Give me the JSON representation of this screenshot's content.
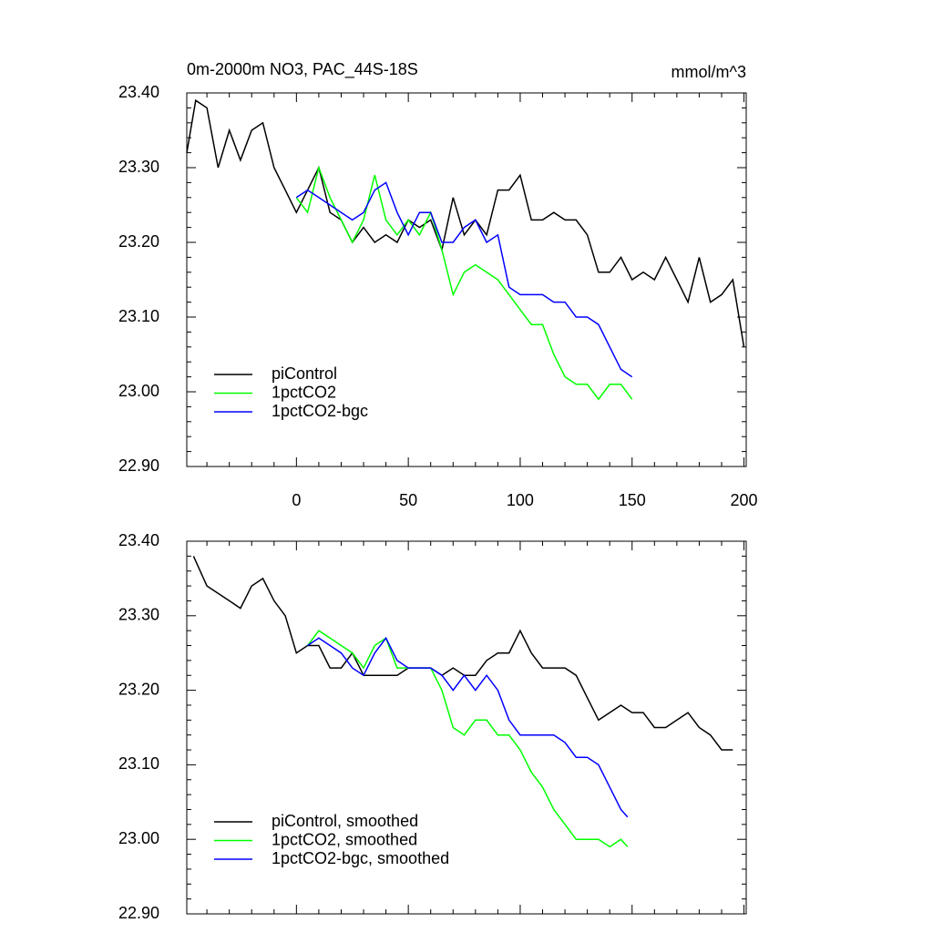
{
  "chart_data": [
    {
      "type": "line",
      "title": "0m-2000m NO3, PAC_44S-18S",
      "units": "mmol/m^3",
      "xlim": [
        -49,
        201
      ],
      "xticks": [
        0,
        50,
        100,
        150,
        200
      ],
      "x_tick_labels": true,
      "ylim": [
        22.9,
        23.4
      ],
      "yticks": [
        {
          "value": 22.9,
          "label": "22.90"
        },
        {
          "value": 23.0,
          "label": "23.00"
        },
        {
          "value": 23.1,
          "label": "23.10"
        },
        {
          "value": 23.2,
          "label": "23.20"
        },
        {
          "value": 23.3,
          "label": "23.30"
        },
        {
          "value": 23.4,
          "label": "23.40"
        }
      ],
      "legend": "lower left",
      "series": [
        {
          "name": "piControl",
          "color": "#000000",
          "x": [
            -49,
            -45,
            -40,
            -35,
            -30,
            -25,
            -20,
            -15,
            -10,
            -5,
            0,
            5,
            10,
            15,
            20,
            25,
            30,
            35,
            40,
            45,
            50,
            55,
            60,
            65,
            70,
            75,
            80,
            85,
            90,
            95,
            100,
            105,
            110,
            115,
            120,
            125,
            130,
            135,
            140,
            145,
            150,
            155,
            160,
            165,
            170,
            175,
            180,
            185,
            190,
            195,
            200
          ],
          "values": [
            23.32,
            23.39,
            23.38,
            23.3,
            23.35,
            23.31,
            23.35,
            23.36,
            23.3,
            23.27,
            23.24,
            23.27,
            23.3,
            23.24,
            23.23,
            23.2,
            23.22,
            23.2,
            23.21,
            23.2,
            23.23,
            23.22,
            23.23,
            23.19,
            23.26,
            23.21,
            23.23,
            23.21,
            23.27,
            23.27,
            23.29,
            23.23,
            23.23,
            23.24,
            23.23,
            23.23,
            23.21,
            23.16,
            23.16,
            23.18,
            23.15,
            23.16,
            23.15,
            23.18,
            23.15,
            23.12,
            23.18,
            23.12,
            23.13,
            23.15,
            23.06
          ]
        },
        {
          "name": "1pctCO2",
          "color": "#00ff00",
          "x": [
            0,
            5,
            10,
            15,
            20,
            25,
            30,
            35,
            40,
            45,
            50,
            55,
            60,
            65,
            70,
            75,
            80,
            85,
            90,
            95,
            100,
            105,
            110,
            115,
            120,
            125,
            130,
            135,
            140,
            145,
            150
          ],
          "values": [
            23.26,
            23.24,
            23.3,
            23.26,
            23.23,
            23.2,
            23.23,
            23.29,
            23.23,
            23.21,
            23.23,
            23.21,
            23.24,
            23.19,
            23.13,
            23.16,
            23.17,
            23.16,
            23.15,
            23.13,
            23.11,
            23.09,
            23.09,
            23.05,
            23.02,
            23.01,
            23.01,
            22.99,
            23.01,
            23.01,
            22.99
          ]
        },
        {
          "name": "1pctCO2-bgc",
          "color": "#0000ff",
          "x": [
            0,
            5,
            10,
            15,
            20,
            25,
            30,
            35,
            40,
            45,
            50,
            55,
            60,
            65,
            70,
            75,
            80,
            85,
            90,
            95,
            100,
            105,
            110,
            115,
            120,
            125,
            130,
            135,
            140,
            145,
            150
          ],
          "values": [
            23.26,
            23.27,
            23.26,
            23.25,
            23.24,
            23.23,
            23.24,
            23.27,
            23.28,
            23.24,
            23.21,
            23.24,
            23.24,
            23.2,
            23.2,
            23.22,
            23.23,
            23.2,
            23.21,
            23.14,
            23.13,
            23.13,
            23.13,
            23.12,
            23.12,
            23.1,
            23.1,
            23.09,
            23.06,
            23.03,
            23.02
          ]
        }
      ]
    },
    {
      "type": "line",
      "xlim": [
        -49,
        201
      ],
      "xticks": [
        0,
        50,
        100,
        150,
        200
      ],
      "x_tick_labels": false,
      "ylim": [
        22.9,
        23.4
      ],
      "yticks": [
        {
          "value": 22.9,
          "label": "22.90"
        },
        {
          "value": 23.0,
          "label": "23.00"
        },
        {
          "value": 23.1,
          "label": "23.10"
        },
        {
          "value": 23.2,
          "label": "23.20"
        },
        {
          "value": 23.3,
          "label": "23.30"
        },
        {
          "value": 23.4,
          "label": "23.40"
        }
      ],
      "legend": "lower left",
      "series": [
        {
          "name": "piControl, smoothed",
          "color": "#000000",
          "x": [
            -46,
            -40,
            -35,
            -30,
            -25,
            -20,
            -15,
            -10,
            -5,
            0,
            5,
            10,
            15,
            20,
            25,
            30,
            35,
            40,
            45,
            50,
            55,
            60,
            65,
            70,
            75,
            80,
            85,
            90,
            95,
            100,
            105,
            110,
            115,
            120,
            125,
            130,
            135,
            140,
            145,
            150,
            155,
            160,
            165,
            170,
            175,
            180,
            185,
            190,
            195
          ],
          "values": [
            23.38,
            23.34,
            23.33,
            23.32,
            23.31,
            23.34,
            23.35,
            23.32,
            23.3,
            23.25,
            23.26,
            23.26,
            23.23,
            23.23,
            23.25,
            23.22,
            23.22,
            23.22,
            23.22,
            23.23,
            23.23,
            23.23,
            23.22,
            23.23,
            23.22,
            23.22,
            23.24,
            23.25,
            23.25,
            23.28,
            23.25,
            23.23,
            23.23,
            23.23,
            23.22,
            23.19,
            23.16,
            23.17,
            23.18,
            23.17,
            23.17,
            23.15,
            23.15,
            23.16,
            23.17,
            23.15,
            23.14,
            23.12,
            23.12
          ]
        },
        {
          "name": "1pctCO2, smoothed",
          "color": "#00ff00",
          "x": [
            5,
            10,
            15,
            20,
            25,
            30,
            35,
            40,
            45,
            50,
            55,
            60,
            65,
            70,
            75,
            80,
            85,
            90,
            95,
            100,
            105,
            110,
            115,
            120,
            125,
            130,
            135,
            140,
            145,
            148
          ],
          "values": [
            23.26,
            23.28,
            23.27,
            23.26,
            23.25,
            23.23,
            23.26,
            23.27,
            23.23,
            23.23,
            23.23,
            23.23,
            23.2,
            23.15,
            23.14,
            23.16,
            23.16,
            23.14,
            23.14,
            23.12,
            23.09,
            23.07,
            23.04,
            23.02,
            23.0,
            23.0,
            23.0,
            22.99,
            23.0,
            22.99
          ]
        },
        {
          "name": "1pctCO2-bgc, smoothed",
          "color": "#0000ff",
          "x": [
            5,
            10,
            15,
            20,
            25,
            30,
            35,
            40,
            45,
            50,
            55,
            60,
            65,
            70,
            75,
            80,
            85,
            90,
            95,
            100,
            105,
            110,
            115,
            120,
            125,
            130,
            135,
            140,
            145,
            148
          ],
          "values": [
            23.26,
            23.27,
            23.26,
            23.25,
            23.23,
            23.22,
            23.25,
            23.27,
            23.24,
            23.23,
            23.23,
            23.23,
            23.22,
            23.2,
            23.22,
            23.2,
            23.22,
            23.2,
            23.16,
            23.14,
            23.14,
            23.14,
            23.14,
            23.13,
            23.11,
            23.11,
            23.1,
            23.07,
            23.04,
            23.03
          ]
        }
      ]
    }
  ]
}
